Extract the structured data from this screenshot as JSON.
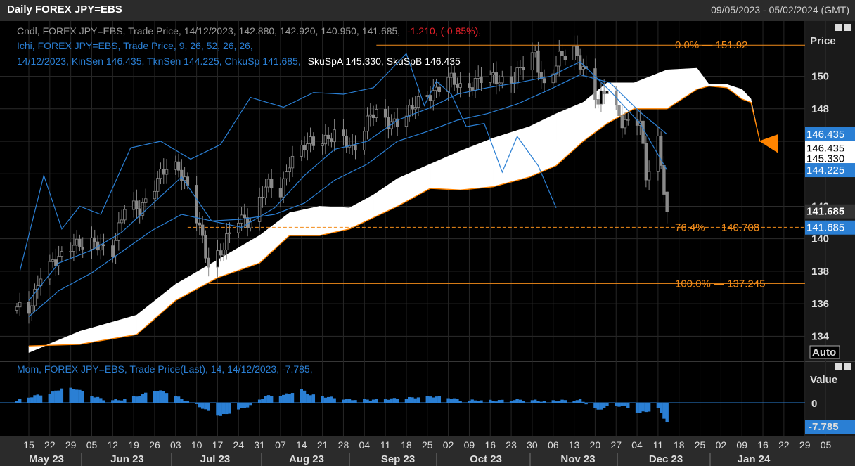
{
  "header": {
    "title": "Daily FOREX JPY=EBS",
    "date_range": "09/05/2023 - 05/02/2024 (GMT)"
  },
  "price_panel": {
    "legend_line1": "Cndl, FOREX JPY=EBS, Trade Price, 14/12/2023, 142.880, 142.920, 140.950, 141.685,",
    "legend_line1_change": "-1.210, (-0.85%),",
    "legend_line2": "Ichi, FOREX JPY=EBS, Trade Price,  9, 26, 52, 26, 26,",
    "legend_line3": "14/12/2023, KinSen 146.435, TknSen 144.225, ChkuSp 141.685,",
    "legend_line3_white": "SkuSpA 145.330, SkuSpB 146.435",
    "axis_title": "Price",
    "auto_label": "Auto",
    "colors": {
      "candle": "#8a8a8a",
      "ichimoku": "#2a7fd4",
      "fib": "#f28c1a",
      "kumo_bull": "#ffffff",
      "kumo_bear": "#ff8400"
    }
  },
  "momentum_panel": {
    "legend": "Mom, FOREX JPY=EBS, Trade Price(Last),  14, 14/12/2023, -7.785,",
    "axis_title": "Value",
    "zero_label": "0",
    "last_label": "-7.785"
  },
  "chart_data": [
    {
      "type": "candlestick",
      "series_name": "FOREX JPY=EBS",
      "ylim": [
        132.5,
        153.4
      ],
      "y_ticks": [
        "134",
        "136",
        "138",
        "140",
        "142",
        "144",
        "146",
        "148",
        "150"
      ],
      "last": {
        "date": "14/12/2023",
        "open": 142.88,
        "high": 142.92,
        "low": 140.95,
        "close": 141.685,
        "change": -1.21,
        "change_pct": -0.85
      },
      "close_path": [
        [
          "2023-05-15",
          135.6
        ],
        [
          "2023-05-19",
          137.9
        ],
        [
          "2023-05-24",
          138.5
        ],
        [
          "2023-05-30",
          139.9
        ],
        [
          "2023-06-02",
          139.5
        ],
        [
          "2023-06-07",
          139.6
        ],
        [
          "2023-06-12",
          139.4
        ],
        [
          "2023-06-16",
          141.8
        ],
        [
          "2023-06-21",
          141.9
        ],
        [
          "2023-06-26",
          143.3
        ],
        [
          "2023-06-30",
          144.3
        ],
        [
          "2023-07-04",
          144.5
        ],
        [
          "2023-07-07",
          143.2
        ],
        [
          "2023-07-11",
          140.5
        ],
        [
          "2023-07-14",
          138.4
        ],
        [
          "2023-07-19",
          139.6
        ],
        [
          "2023-07-24",
          141.1
        ],
        [
          "2023-07-28",
          141.2
        ],
        [
          "2023-08-02",
          143.2
        ],
        [
          "2023-08-07",
          142.8
        ],
        [
          "2023-08-10",
          144.9
        ],
        [
          "2023-08-15",
          145.6
        ],
        [
          "2023-08-21",
          146.2
        ],
        [
          "2023-08-25",
          146.4
        ],
        [
          "2023-08-31",
          145.5
        ],
        [
          "2023-09-06",
          147.7
        ],
        [
          "2023-09-12",
          147.1
        ],
        [
          "2023-09-19",
          147.8
        ],
        [
          "2023-09-26",
          149.0
        ],
        [
          "2023-10-02",
          149.8
        ],
        [
          "2023-10-06",
          149.3
        ],
        [
          "2023-10-12",
          149.8
        ],
        [
          "2023-10-18",
          149.8
        ],
        [
          "2023-10-24",
          149.9
        ],
        [
          "2023-10-31",
          151.4
        ],
        [
          "2023-11-03",
          149.4
        ],
        [
          "2023-11-08",
          151.0
        ],
        [
          "2023-11-13",
          151.7
        ],
        [
          "2023-11-16",
          150.6
        ],
        [
          "2023-11-21",
          148.2
        ],
        [
          "2023-11-24",
          149.5
        ],
        [
          "2023-11-29",
          147.2
        ],
        [
          "2023-12-01",
          146.9
        ],
        [
          "2023-12-05",
          147.2
        ],
        [
          "2023-12-07",
          144.0
        ],
        [
          "2023-12-11",
          146.1
        ],
        [
          "2023-12-13",
          142.9
        ],
        [
          "2023-12-14",
          141.685
        ]
      ]
    },
    {
      "type": "line",
      "series": [
        {
          "name": "KinSen",
          "last": 146.435
        },
        {
          "name": "TknSen",
          "last": 144.225
        },
        {
          "name": "ChkuSp",
          "last": 141.685
        },
        {
          "name": "SkuSpA",
          "last": 145.33
        },
        {
          "name": "SkuSpB",
          "last": 146.435
        }
      ],
      "kumo_span_a": [
        [
          "2023-05-15",
          133.0
        ],
        [
          "2023-06-01",
          134.3
        ],
        [
          "2023-06-20",
          135.3
        ],
        [
          "2023-07-03",
          137.2
        ],
        [
          "2023-07-17",
          138.7
        ],
        [
          "2023-07-31",
          140.2
        ],
        [
          "2023-08-10",
          141.6
        ],
        [
          "2023-08-20",
          142.0
        ],
        [
          "2023-08-30",
          141.9
        ],
        [
          "2023-09-07",
          142.7
        ],
        [
          "2023-09-15",
          143.7
        ],
        [
          "2023-09-26",
          144.6
        ],
        [
          "2023-10-06",
          145.4
        ],
        [
          "2023-10-17",
          146.2
        ],
        [
          "2023-10-29",
          146.9
        ],
        [
          "2023-11-07",
          147.7
        ],
        [
          "2023-11-16",
          148.4
        ],
        [
          "2023-11-24",
          149.6
        ],
        [
          "2023-12-03",
          149.6
        ],
        [
          "2023-12-14",
          150.4
        ],
        [
          "2023-12-24",
          150.5
        ],
        [
          "2023-12-28",
          149.5
        ],
        [
          "2024-01-03",
          149.5
        ],
        [
          "2024-01-08",
          149.2
        ],
        [
          "2024-01-11",
          148.6
        ],
        [
          "2024-01-14",
          146.0
        ],
        [
          "2024-01-20",
          145.3
        ]
      ],
      "kumo_span_b": [
        [
          "2023-05-15",
          133.4
        ],
        [
          "2023-06-01",
          133.5
        ],
        [
          "2023-06-20",
          134.1
        ],
        [
          "2023-07-03",
          136.2
        ],
        [
          "2023-07-17",
          137.6
        ],
        [
          "2023-07-31",
          138.5
        ],
        [
          "2023-08-10",
          140.2
        ],
        [
          "2023-08-20",
          140.2
        ],
        [
          "2023-08-30",
          140.6
        ],
        [
          "2023-09-07",
          141.3
        ],
        [
          "2023-09-15",
          142.0
        ],
        [
          "2023-09-26",
          143.1
        ],
        [
          "2023-10-06",
          143.0
        ],
        [
          "2023-10-17",
          143.2
        ],
        [
          "2023-10-29",
          143.8
        ],
        [
          "2023-11-07",
          144.5
        ],
        [
          "2023-11-16",
          146.0
        ],
        [
          "2023-11-24",
          147.1
        ],
        [
          "2023-12-03",
          148.0
        ],
        [
          "2023-12-14",
          148.0
        ],
        [
          "2023-12-24",
          149.2
        ],
        [
          "2023-12-28",
          149.4
        ],
        [
          "2024-01-03",
          149.3
        ],
        [
          "2024-01-08",
          148.6
        ],
        [
          "2024-01-11",
          148.4
        ],
        [
          "2024-01-14",
          146.0
        ],
        [
          "2024-01-20",
          146.4
        ]
      ],
      "tenkan_path": [
        [
          "2023-05-15",
          136.2
        ],
        [
          "2023-05-25",
          138.5
        ],
        [
          "2023-06-05",
          139.3
        ],
        [
          "2023-06-15",
          140.4
        ],
        [
          "2023-06-25",
          142.1
        ],
        [
          "2023-07-05",
          143.8
        ],
        [
          "2023-07-15",
          141.1
        ],
        [
          "2023-07-25",
          140.7
        ],
        [
          "2023-08-05",
          141.9
        ],
        [
          "2023-08-15",
          143.9
        ],
        [
          "2023-08-25",
          145.5
        ],
        [
          "2023-09-05",
          146.0
        ],
        [
          "2023-09-15",
          147.3
        ],
        [
          "2023-09-25",
          148.0
        ],
        [
          "2023-10-05",
          148.9
        ],
        [
          "2023-10-15",
          149.3
        ],
        [
          "2023-10-25",
          149.6
        ],
        [
          "2023-11-05",
          150.0
        ],
        [
          "2023-11-15",
          150.9
        ],
        [
          "2023-11-25",
          149.1
        ],
        [
          "2023-12-05",
          147.1
        ],
        [
          "2023-12-14",
          144.225
        ]
      ],
      "kijun_path": [
        [
          "2023-05-15",
          135.2
        ],
        [
          "2023-05-25",
          136.8
        ],
        [
          "2023-06-05",
          137.9
        ],
        [
          "2023-06-15",
          139.2
        ],
        [
          "2023-06-25",
          140.5
        ],
        [
          "2023-07-05",
          141.5
        ],
        [
          "2023-07-15",
          141.1
        ],
        [
          "2023-07-25",
          141.2
        ],
        [
          "2023-08-05",
          141.5
        ],
        [
          "2023-08-15",
          142.2
        ],
        [
          "2023-08-25",
          143.6
        ],
        [
          "2023-09-05",
          144.6
        ],
        [
          "2023-09-15",
          146.0
        ],
        [
          "2023-09-25",
          146.6
        ],
        [
          "2023-10-05",
          147.3
        ],
        [
          "2023-10-15",
          147.7
        ],
        [
          "2023-10-25",
          148.3
        ],
        [
          "2023-11-05",
          149.2
        ],
        [
          "2023-11-15",
          150.1
        ],
        [
          "2023-11-25",
          149.6
        ],
        [
          "2023-12-05",
          147.8
        ],
        [
          "2023-12-14",
          146.435
        ]
      ],
      "chikou_path": [
        [
          "2023-05-12",
          138.0
        ],
        [
          "2023-05-20",
          143.9
        ],
        [
          "2023-05-26",
          140.6
        ],
        [
          "2023-06-01",
          142.0
        ],
        [
          "2023-06-08",
          141.5
        ],
        [
          "2023-06-18",
          145.6
        ],
        [
          "2023-06-28",
          146.0
        ],
        [
          "2023-07-08",
          144.9
        ],
        [
          "2023-07-18",
          145.8
        ],
        [
          "2023-07-28",
          148.7
        ],
        [
          "2023-08-08",
          148.1
        ],
        [
          "2023-08-18",
          149.0
        ],
        [
          "2023-08-28",
          148.9
        ],
        [
          "2023-09-07",
          149.3
        ],
        [
          "2023-09-18",
          151.4
        ],
        [
          "2023-09-24",
          148.2
        ],
        [
          "2023-09-28",
          149.7
        ],
        [
          "2023-10-03",
          148.9
        ],
        [
          "2023-10-08",
          146.9
        ],
        [
          "2023-10-14",
          147.1
        ],
        [
          "2023-10-20",
          144.1
        ],
        [
          "2023-10-25",
          146.3
        ],
        [
          "2023-11-01",
          144.5
        ],
        [
          "2023-11-07",
          141.9
        ]
      ]
    },
    {
      "type": "line",
      "series_name": "Fibonacci retracement",
      "levels": [
        {
          "label": "0.0%",
          "value": "151.92"
        },
        {
          "label": "76.4%",
          "value": "140.708"
        },
        {
          "label": "100.0%",
          "value": "137.245"
        }
      ]
    },
    {
      "type": "bar",
      "series_name": "Mom",
      "period": 14,
      "last": -7.785,
      "ylim": [
        -10,
        10
      ],
      "values_path": [
        [
          "2023-05-11",
          0.7
        ],
        [
          "2023-05-17",
          2.8
        ],
        [
          "2023-05-22",
          3.6
        ],
        [
          "2023-05-26",
          5.7
        ],
        [
          "2023-05-31",
          5.5
        ],
        [
          "2023-06-05",
          2.7
        ],
        [
          "2023-06-09",
          1.3
        ],
        [
          "2023-06-14",
          1.0
        ],
        [
          "2023-06-20",
          2.6
        ],
        [
          "2023-06-26",
          4.9
        ],
        [
          "2023-06-30",
          4.2
        ],
        [
          "2023-07-04",
          2.1
        ],
        [
          "2023-07-10",
          -0.8
        ],
        [
          "2023-07-13",
          -2.9
        ],
        [
          "2023-07-18",
          -5.2
        ],
        [
          "2023-07-24",
          -2.8
        ],
        [
          "2023-07-28",
          -1.2
        ],
        [
          "2023-08-02",
          2.6
        ],
        [
          "2023-08-08",
          3.0
        ],
        [
          "2023-08-14",
          5.3
        ],
        [
          "2023-08-17",
          3.1
        ],
        [
          "2023-08-23",
          2.2
        ],
        [
          "2023-08-29",
          1.4
        ],
        [
          "2023-09-04",
          1.1
        ],
        [
          "2023-09-08",
          1.3
        ],
        [
          "2023-09-14",
          1.6
        ],
        [
          "2023-09-20",
          2.0
        ],
        [
          "2023-09-26",
          2.5
        ],
        [
          "2023-10-02",
          2.0
        ],
        [
          "2023-10-06",
          1.0
        ],
        [
          "2023-10-12",
          0.9
        ],
        [
          "2023-10-18",
          0.8
        ],
        [
          "2023-10-24",
          1.2
        ],
        [
          "2023-10-30",
          1.0
        ],
        [
          "2023-11-03",
          0.6
        ],
        [
          "2023-11-09",
          0.9
        ],
        [
          "2023-11-15",
          1.1
        ],
        [
          "2023-11-21",
          -3.0
        ],
        [
          "2023-11-24",
          -1.4
        ],
        [
          "2023-11-29",
          -1.2
        ],
        [
          "2023-12-05",
          -4.0
        ],
        [
          "2023-12-08",
          -3.2
        ],
        [
          "2023-12-11",
          -2.4
        ],
        [
          "2023-12-14",
          -7.785
        ]
      ]
    }
  ],
  "x_axis": {
    "days": [
      "15",
      "22",
      "29",
      "05",
      "12",
      "19",
      "26",
      "03",
      "10",
      "17",
      "24",
      "31",
      "07",
      "14",
      "21",
      "28",
      "04",
      "11",
      "18",
      "25",
      "02",
      "09",
      "16",
      "23",
      "30",
      "06",
      "13",
      "20",
      "27",
      "04",
      "11",
      "18",
      "25",
      "02",
      "09",
      "16",
      "22",
      "29",
      "05"
    ],
    "months": [
      "May 23",
      "Jun 23",
      "Jul 23",
      "Aug 23",
      "Sep 23",
      "Oct 23",
      "Nov 23",
      "Dec 23",
      "Jan 24"
    ]
  },
  "right_axis": {
    "labels": [
      {
        "text": "146.435",
        "value": 146.435,
        "bg": "#2a7fd4",
        "fg": "#ffffff"
      },
      {
        "text": "146.435",
        "value": 145.575,
        "bg": "#ffffff",
        "fg": "#000000"
      },
      {
        "text": "145.330",
        "value": 144.95,
        "bg": "#ffffff",
        "fg": "#000000"
      },
      {
        "text": "144.225",
        "value": 144.225,
        "bg": "#2a7fd4",
        "fg": "#ffffff"
      },
      {
        "text": "141.685",
        "value": 141.685,
        "bg": "#333333",
        "fg": "#ffffff"
      },
      {
        "text": "141.685",
        "value": 140.69,
        "bg": "#2a7fd4",
        "fg": "#ffffff"
      }
    ]
  }
}
